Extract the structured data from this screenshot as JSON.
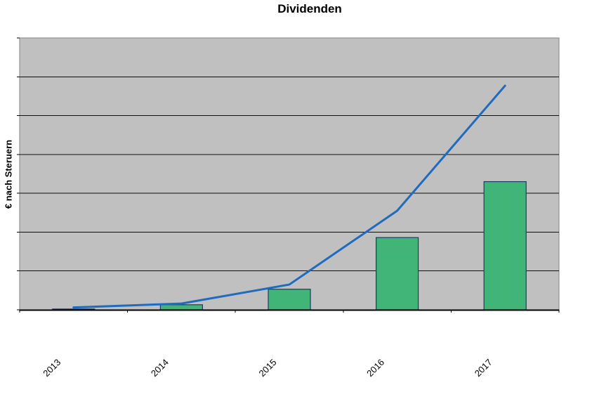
{
  "chart_data": {
    "type": "bar",
    "title": "Dividenden",
    "xlabel": "",
    "ylabel": "€ nach Steruern",
    "categories": [
      "2013",
      "2014",
      "2015",
      "2016",
      "2017"
    ],
    "series": [
      {
        "name": "bars",
        "type": "bar",
        "values": [
          0.02,
          0.13,
          0.53,
          1.86,
          3.3
        ]
      },
      {
        "name": "line",
        "type": "line",
        "values": [
          0.06,
          0.16,
          0.65,
          2.55,
          5.77
        ]
      }
    ],
    "ylim": [
      0,
      7
    ],
    "y_gridline_divisions": 7,
    "y_tick_labels_visible": false,
    "grid": true,
    "legend_position": "none",
    "x_label_rotation_deg": 45,
    "colors": {
      "plot_background": "#c0c0c0",
      "plot_border": "#848484",
      "gridline": "#111111",
      "axis": "#000000",
      "bar_fill": "#41b478",
      "bar_border": "#1f3a68",
      "line": "#1f6bbf",
      "title_text": "#000000",
      "label_text": "#000000"
    }
  }
}
